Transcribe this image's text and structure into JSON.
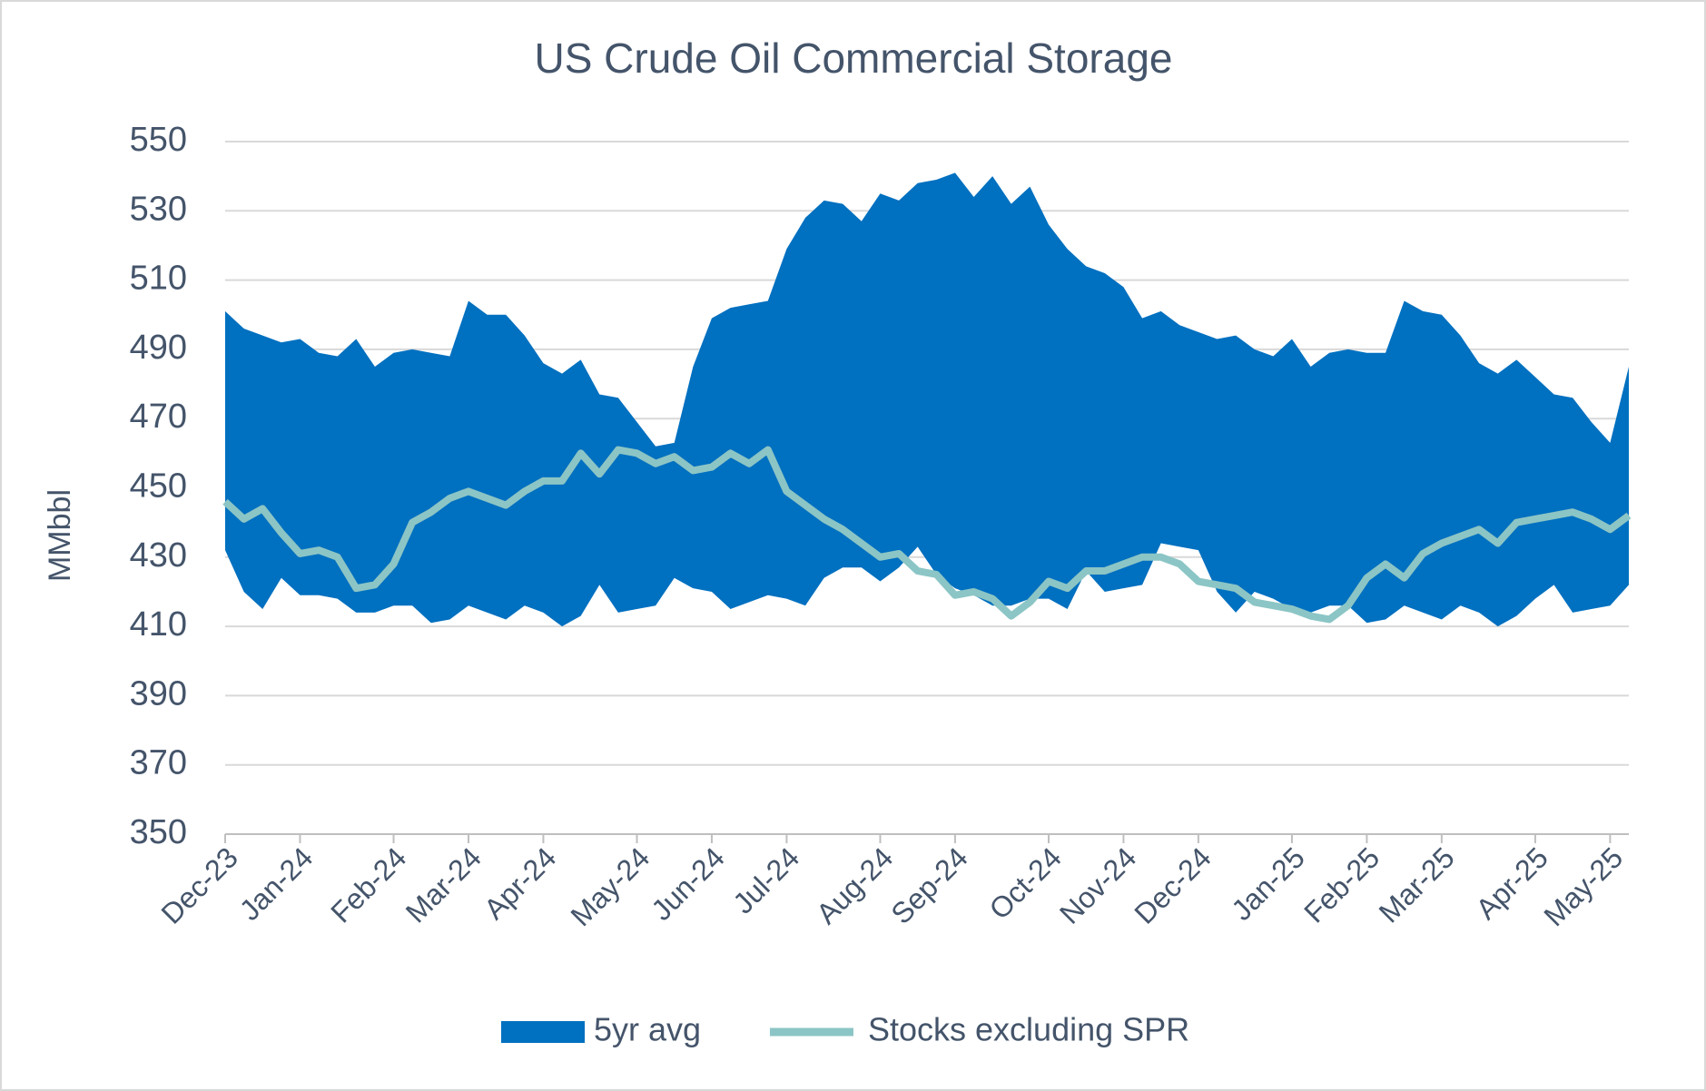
{
  "chart_data": {
    "type": "band-line",
    "title": "US Crude Oil Commercial Storage",
    "ylabel": "MMbbl",
    "categories": [
      "Dec-23",
      null,
      null,
      null,
      "Jan-24",
      null,
      null,
      null,
      null,
      "Feb-24",
      null,
      null,
      null,
      "Mar-24",
      null,
      null,
      null,
      "Apr-24",
      null,
      null,
      null,
      null,
      "May-24",
      null,
      null,
      null,
      "Jun-24",
      null,
      null,
      null,
      "Jul-24",
      null,
      null,
      null,
      null,
      "Aug-24",
      null,
      null,
      null,
      "Sep-24",
      null,
      null,
      null,
      null,
      "Oct-24",
      null,
      null,
      null,
      "Nov-24",
      null,
      null,
      null,
      "Dec-24",
      null,
      null,
      null,
      null,
      "Jan-25",
      null,
      null,
      null,
      "Feb-25",
      null,
      null,
      null,
      "Mar-25",
      null,
      null,
      null,
      null,
      "Apr-25",
      null,
      null,
      null,
      "May-25",
      null
    ],
    "series": [
      {
        "name": "5yr avg",
        "color": "#0070c0",
        "high": [
          501,
          496,
          494,
          492,
          493,
          489,
          488,
          493,
          485,
          489,
          490,
          489,
          488,
          504,
          500,
          500,
          494,
          486,
          483,
          487,
          477,
          476,
          469,
          462,
          463,
          485,
          499,
          502,
          503,
          504,
          519,
          528,
          533,
          532,
          527,
          535,
          533,
          538,
          539,
          541,
          534,
          540,
          532,
          537,
          526,
          519,
          514,
          512,
          508,
          499,
          501,
          497,
          495,
          493,
          494,
          490,
          488,
          493,
          485,
          489,
          490,
          489,
          489,
          504,
          501,
          500,
          494,
          486,
          483,
          487,
          482,
          477,
          476,
          469,
          463,
          485
        ],
        "low": [
          432,
          420,
          415,
          424,
          419,
          419,
          418,
          414,
          414,
          416,
          416,
          411,
          412,
          416,
          414,
          412,
          416,
          414,
          410,
          413,
          422,
          414,
          415,
          416,
          424,
          421,
          420,
          415,
          417,
          419,
          418,
          416,
          424,
          427,
          427,
          423,
          427,
          433,
          425,
          421,
          419,
          416,
          416,
          418,
          418,
          415,
          426,
          420,
          421,
          422,
          434,
          433,
          432,
          420,
          414,
          420,
          418,
          415,
          414,
          416,
          416,
          411,
          412,
          416,
          414,
          412,
          416,
          414,
          410,
          413,
          418,
          422,
          414,
          415,
          416,
          422
        ]
      },
      {
        "name": "Stocks excluding SPR",
        "color": "#8cc5c5",
        "values": [
          446,
          441,
          444,
          437,
          431,
          432,
          430,
          421,
          422,
          428,
          440,
          443,
          447,
          449,
          447,
          445,
          449,
          452,
          452,
          460,
          454,
          461,
          460,
          457,
          459,
          455,
          456,
          460,
          457,
          461,
          449,
          445,
          441,
          438,
          434,
          430,
          431,
          426,
          425,
          419,
          420,
          418,
          413,
          417,
          423,
          421,
          426,
          426,
          428,
          430,
          430,
          428,
          423,
          422,
          421,
          417,
          416,
          415,
          413,
          412,
          416,
          424,
          428,
          424,
          431,
          434,
          436,
          438,
          434,
          440,
          441,
          442,
          443,
          441,
          438,
          442
        ]
      }
    ],
    "ylim": [
      350,
      550
    ],
    "yticks": [
      350,
      370,
      390,
      410,
      430,
      450,
      470,
      490,
      510,
      530,
      550
    ],
    "grid": true
  }
}
